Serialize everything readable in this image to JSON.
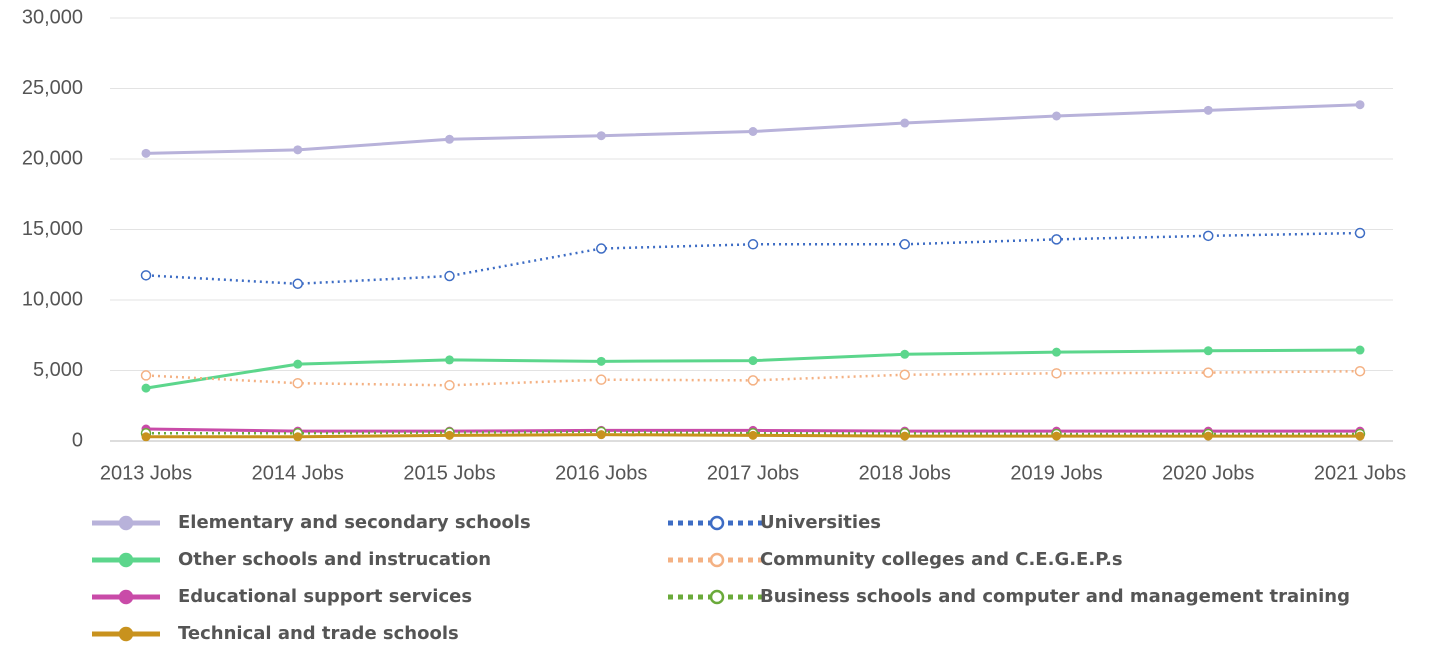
{
  "chart_data": {
    "type": "line",
    "categories": [
      "2013 Jobs",
      "2014 Jobs",
      "2015 Jobs",
      "2016 Jobs",
      "2017 Jobs",
      "2018 Jobs",
      "2019 Jobs",
      "2020 Jobs",
      "2021 Jobs"
    ],
    "ylim": [
      0,
      30000
    ],
    "yticks": [
      0,
      {
        "value": 5000,
        "label": "5,000"
      },
      {
        "value": 10000,
        "label": "10,000"
      },
      {
        "value": 15000,
        "label": "15,000"
      },
      {
        "value": 20000,
        "label": "20,000"
      },
      {
        "value": 25000,
        "label": "25,000"
      },
      {
        "value": 30000,
        "label": "30,000"
      }
    ],
    "grid": true,
    "series": [
      {
        "name": "Elementary and secondary schools",
        "color": "#b8b2da",
        "line_style": "solid",
        "marker": "filled",
        "values": [
          20400,
          20650,
          21400,
          21650,
          21950,
          22550,
          23050,
          23450,
          23850
        ]
      },
      {
        "name": "Universities",
        "color": "#3d6cc4",
        "line_style": "dotted",
        "marker": "open",
        "values": [
          11750,
          11150,
          11700,
          13650,
          13950,
          13950,
          14300,
          14550,
          14750
        ]
      },
      {
        "name": "Other schools and instrucation",
        "color": "#5cd68c",
        "line_style": "solid",
        "marker": "filled",
        "values": [
          3750,
          5450,
          5750,
          5650,
          5700,
          6150,
          6300,
          6400,
          6450
        ]
      },
      {
        "name": "Community colleges and C.E.G.E.P.s",
        "color": "#f4b183",
        "line_style": "dotted",
        "marker": "open",
        "values": [
          4650,
          4100,
          3950,
          4350,
          4300,
          4700,
          4800,
          4850,
          4950
        ]
      },
      {
        "name": "Educational support services",
        "color": "#c94ba8",
        "line_style": "solid",
        "marker": "filled",
        "values": [
          850,
          700,
          700,
          750,
          750,
          700,
          700,
          700,
          700
        ]
      },
      {
        "name": "Business schools and computer and management training",
        "color": "#6aaa3a",
        "line_style": "dotted",
        "marker": "open",
        "values": [
          550,
          550,
          600,
          650,
          550,
          550,
          500,
          500,
          500
        ]
      },
      {
        "name": "Technical and trade schools",
        "color": "#c8921e",
        "line_style": "solid",
        "marker": "filled",
        "values": [
          300,
          300,
          400,
          450,
          400,
          350,
          350,
          350,
          350
        ]
      }
    ]
  }
}
